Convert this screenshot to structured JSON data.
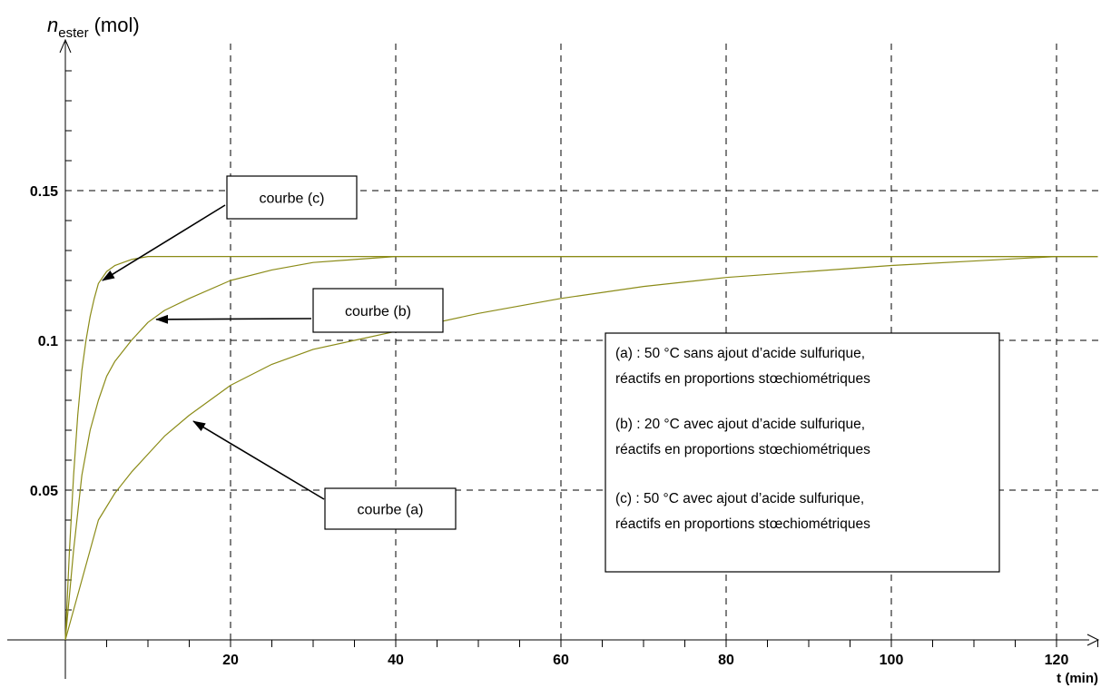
{
  "chart_data": {
    "type": "line",
    "title": "",
    "ylabel": {
      "symbol": "n",
      "subscript": "ester",
      "unit": "(mol)"
    },
    "xlabel": "t (min)",
    "xlim": [
      0,
      125
    ],
    "ylim": [
      0,
      0.2
    ],
    "x_ticks": [
      20,
      40,
      60,
      80,
      100,
      120
    ],
    "x_tick_labels": [
      "20",
      "40",
      "60",
      "80",
      "100",
      "120"
    ],
    "y_ticks": [
      0.05,
      0.1,
      0.15
    ],
    "y_tick_labels": [
      "0.05",
      "0.1",
      "0.15"
    ],
    "grid": true,
    "series": [
      {
        "name": "courbe (a)",
        "color": "#8b8b17",
        "x": [
          0,
          1,
          2,
          3,
          4,
          6,
          8,
          10,
          12,
          15,
          20,
          25,
          30,
          35,
          40,
          50,
          60,
          70,
          80,
          90,
          100,
          110,
          120,
          125
        ],
        "y": [
          0,
          0.01,
          0.02,
          0.03,
          0.04,
          0.049,
          0.056,
          0.062,
          0.068,
          0.075,
          0.085,
          0.092,
          0.097,
          0.1,
          0.103,
          0.109,
          0.114,
          0.118,
          0.121,
          0.123,
          0.125,
          0.1265,
          0.128,
          0.128
        ]
      },
      {
        "name": "courbe (b)",
        "color": "#8b8b17",
        "x": [
          0,
          1,
          2,
          3,
          4,
          5,
          6,
          8,
          10,
          12,
          15,
          20,
          25,
          30,
          35,
          40,
          45,
          125
        ],
        "y": [
          0,
          0.03,
          0.055,
          0.07,
          0.08,
          0.088,
          0.093,
          0.1,
          0.106,
          0.11,
          0.114,
          0.12,
          0.1235,
          0.126,
          0.127,
          0.128,
          0.128,
          0.128
        ]
      },
      {
        "name": "courbe (c)",
        "color": "#8b8b17",
        "x": [
          0,
          0.5,
          1,
          1.5,
          2,
          2.5,
          3,
          3.5,
          4,
          5,
          6,
          7,
          8,
          10,
          125
        ],
        "y": [
          0,
          0.03,
          0.055,
          0.075,
          0.09,
          0.1,
          0.108,
          0.114,
          0.119,
          0.123,
          0.125,
          0.126,
          0.127,
          0.128,
          0.128
        ]
      }
    ],
    "annotations": [
      {
        "id": "c",
        "label": "courbe (c)",
        "point": [
          4.5,
          0.12
        ]
      },
      {
        "id": "b",
        "label": "courbe (b)",
        "point": [
          11,
          0.107
        ]
      },
      {
        "id": "a",
        "label": "courbe (a)",
        "point": [
          15.5,
          0.073
        ]
      }
    ],
    "legend_box": {
      "lines": [
        "(a) : 50 °C sans ajout d’acide sulfurique,",
        "réactifs en proportions stœchiométriques",
        "(b) : 20 °C avec ajout d’acide sulfurique,",
        "réactifs en proportions stœchiométriques",
        "(c) : 50 °C avec ajout d’acide sulfurique,",
        "réactifs en proportions stœchiométriques"
      ]
    }
  }
}
